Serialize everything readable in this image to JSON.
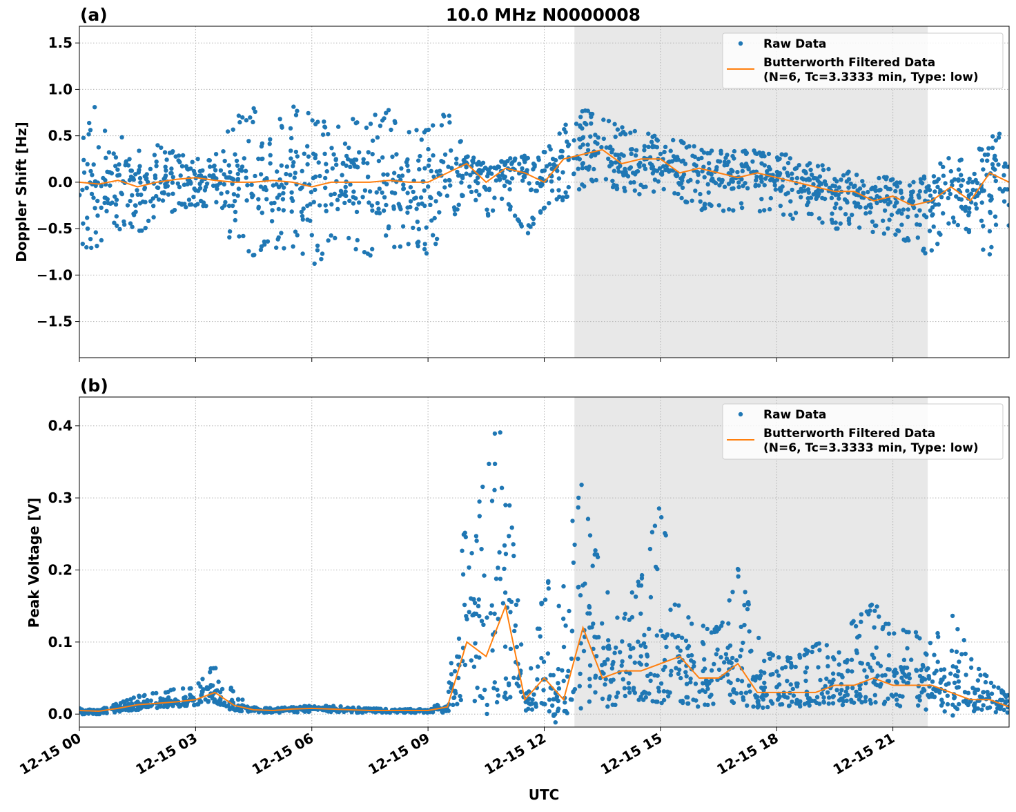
{
  "title": "10.0 MHz N0000008",
  "chart_data": [
    {
      "type": "scatter+line",
      "panel_label": "(a)",
      "ylabel": "Doppler Shift [Hz]",
      "xlabel": "",
      "ylim": [
        -1.89,
        1.68
      ],
      "yticks": [
        -1.5,
        -1.0,
        -0.5,
        0.0,
        0.5,
        1.0,
        1.5
      ],
      "ytick_labels": [
        "−1.5",
        "−1.0",
        "−0.5",
        "0.0",
        "0.5",
        "1.0",
        "1.5"
      ],
      "grid": true,
      "legend": {
        "placement": "top-right",
        "entries": [
          "Raw Data",
          "Butterworth Filtered Data\n(N=6, Tc=3.3333 min, Type: low)"
        ]
      },
      "shaded_region_hours": [
        12.78,
        21.9
      ],
      "x_hours": [
        0,
        0.5,
        1,
        1.5,
        2,
        2.5,
        3,
        3.5,
        4,
        4.5,
        5,
        5.5,
        6,
        6.5,
        7,
        7.5,
        8,
        8.5,
        9,
        9.5,
        10,
        10.5,
        11,
        11.5,
        12,
        12.5,
        13,
        13.5,
        14,
        14.5,
        15,
        15.5,
        16,
        16.5,
        17,
        17.5,
        18,
        18.5,
        19,
        19.5,
        20,
        20.5,
        21,
        21.5,
        22,
        22.5,
        23,
        23.5,
        24
      ],
      "series": [
        {
          "name": "Raw Data",
          "kind": "scatter",
          "upper": [
            0.6,
            0.9,
            0.6,
            0.4,
            0.4,
            0.35,
            0.3,
            0.3,
            0.7,
            0.8,
            0.7,
            0.9,
            0.8,
            0.6,
            0.7,
            0.7,
            0.8,
            0.6,
            0.7,
            0.8,
            0.3,
            0.2,
            0.25,
            0.3,
            0.35,
            0.6,
            0.8,
            0.75,
            0.6,
            0.55,
            0.5,
            0.45,
            0.4,
            0.35,
            0.35,
            0.35,
            0.3,
            0.3,
            0.2,
            0.15,
            0.1,
            0.1,
            0.05,
            0.0,
            0.1,
            0.35,
            0.2,
            0.6,
            0.5
          ],
          "lower": [
            -0.8,
            -0.7,
            -0.5,
            -0.6,
            -0.4,
            -0.3,
            -0.25,
            -0.3,
            -0.7,
            -0.8,
            -0.7,
            -0.8,
            -1.0,
            -0.7,
            -0.7,
            -0.8,
            -0.7,
            -0.7,
            -0.8,
            -0.5,
            -0.1,
            -0.4,
            -0.2,
            -0.6,
            -0.3,
            -0.2,
            -0.05,
            0.0,
            -0.1,
            -0.15,
            -0.1,
            -0.2,
            -0.3,
            -0.3,
            -0.35,
            -0.3,
            -0.4,
            -0.4,
            -0.4,
            -0.5,
            -0.5,
            -0.6,
            -0.55,
            -0.7,
            -0.8,
            -0.4,
            -0.6,
            -0.8,
            -0.5
          ]
        },
        {
          "name": "Butterworth Filtered Data (N=6, Tc=3.3333 min, Type: low)",
          "kind": "line",
          "values": [
            0.0,
            -0.02,
            0.02,
            -0.05,
            0.0,
            0.03,
            0.05,
            0.02,
            0.0,
            0.0,
            0.02,
            0.0,
            -0.05,
            0.0,
            0.0,
            0.0,
            0.02,
            0.0,
            0.0,
            0.1,
            0.2,
            0.0,
            0.15,
            0.1,
            0.0,
            0.25,
            0.3,
            0.35,
            0.2,
            0.25,
            0.25,
            0.1,
            0.15,
            0.1,
            0.05,
            0.1,
            0.05,
            0.0,
            -0.05,
            -0.1,
            -0.1,
            -0.2,
            -0.15,
            -0.25,
            -0.2,
            -0.05,
            -0.2,
            0.1,
            0.0
          ]
        }
      ]
    },
    {
      "type": "scatter+line",
      "panel_label": "(b)",
      "ylabel": "Peak Voltage [V]",
      "xlabel": "UTC",
      "ylim": [
        -0.018,
        0.44
      ],
      "yticks": [
        0.0,
        0.1,
        0.2,
        0.3,
        0.4
      ],
      "ytick_labels": [
        "0.0",
        "0.1",
        "0.2",
        "0.3",
        "0.4"
      ],
      "xticks_hours": [
        0,
        3,
        6,
        9,
        12,
        15,
        18,
        21
      ],
      "xtick_labels": [
        "12-15 00",
        "12-15 03",
        "12-15 06",
        "12-15 09",
        "12-15 12",
        "12-15 15",
        "12-15 18",
        "12-15 21"
      ],
      "grid": true,
      "legend": {
        "placement": "top-right",
        "entries": [
          "Raw Data",
          "Butterworth Filtered Data\n(N=6, Tc=3.3333 min, Type: low)"
        ]
      },
      "shaded_region_hours": [
        12.78,
        21.9
      ],
      "x_hours": [
        0,
        0.5,
        1,
        1.5,
        2,
        2.5,
        3,
        3.5,
        4,
        4.5,
        5,
        5.5,
        6,
        6.5,
        7,
        7.5,
        8,
        8.5,
        9,
        9.5,
        10,
        10.5,
        11,
        11.5,
        12,
        12.5,
        13,
        13.5,
        14,
        14.5,
        15,
        15.5,
        16,
        16.5,
        17,
        17.5,
        18,
        18.5,
        19,
        19.5,
        20,
        20.5,
        21,
        21.5,
        22,
        22.5,
        23,
        23.5,
        24
      ],
      "series": [
        {
          "name": "Raw Data",
          "kind": "scatter",
          "upper": [
            0.008,
            0.006,
            0.015,
            0.025,
            0.03,
            0.035,
            0.04,
            0.07,
            0.03,
            0.01,
            0.008,
            0.01,
            0.012,
            0.012,
            0.01,
            0.008,
            0.007,
            0.007,
            0.007,
            0.02,
            0.3,
            0.42,
            0.39,
            0.03,
            0.18,
            0.22,
            0.335,
            0.2,
            0.15,
            0.19,
            0.3,
            0.15,
            0.13,
            0.12,
            0.21,
            0.11,
            0.08,
            0.08,
            0.1,
            0.1,
            0.13,
            0.16,
            0.12,
            0.12,
            0.1,
            0.15,
            0.08,
            0.05,
            0.025
          ],
          "lower": [
            0.0,
            0.0,
            0.003,
            0.006,
            0.008,
            0.01,
            0.012,
            0.015,
            0.004,
            0.002,
            0.002,
            0.002,
            0.003,
            0.003,
            0.002,
            0.002,
            0.002,
            0.002,
            0.002,
            0.002,
            0.01,
            0.01,
            0.01,
            0.003,
            0.003,
            0.003,
            0.005,
            0.01,
            0.01,
            0.015,
            0.015,
            0.015,
            0.01,
            0.01,
            0.01,
            0.008,
            0.01,
            0.01,
            0.01,
            0.01,
            0.01,
            0.01,
            0.008,
            0.008,
            0.005,
            0.003,
            0.003,
            0.002,
            0.002
          ]
        },
        {
          "name": "Butterworth Filtered Data (N=6, Tc=3.3333 min, Type: low)",
          "kind": "line",
          "values": [
            0.005,
            0.004,
            0.008,
            0.013,
            0.015,
            0.017,
            0.02,
            0.03,
            0.012,
            0.006,
            0.005,
            0.007,
            0.008,
            0.007,
            0.006,
            0.005,
            0.005,
            0.005,
            0.005,
            0.01,
            0.1,
            0.08,
            0.15,
            0.02,
            0.05,
            0.02,
            0.12,
            0.05,
            0.06,
            0.06,
            0.07,
            0.08,
            0.05,
            0.05,
            0.07,
            0.03,
            0.03,
            0.03,
            0.03,
            0.04,
            0.04,
            0.05,
            0.04,
            0.04,
            0.04,
            0.03,
            0.02,
            0.02,
            0.01
          ]
        }
      ]
    }
  ],
  "colors": {
    "raw": "#1f77b4",
    "filtered": "#ff7f0e",
    "shade": "#e8e8e8",
    "grid": "#b0b0b0"
  }
}
